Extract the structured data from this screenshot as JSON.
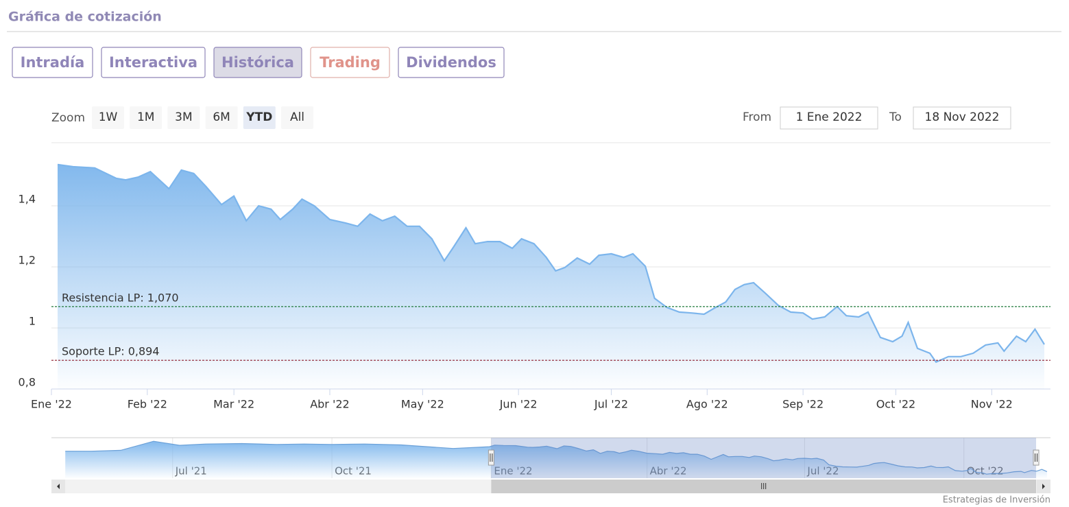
{
  "header": {
    "title": "Gráfica de cotización"
  },
  "tabs": [
    "Intradía",
    "Interactiva",
    "Histórica",
    "Trading",
    "Dividendos"
  ],
  "zoom": {
    "label": "Zoom",
    "buttons": [
      "1W",
      "1M",
      "3M",
      "6M",
      "YTD",
      "All"
    ]
  },
  "range": {
    "from_label": "From",
    "from": "1 Ene 2022",
    "to_label": "To",
    "to": "18 Nov 2022"
  },
  "chart_data": {
    "type": "area",
    "color": "#7cb5ec",
    "x": [
      "2022-01-03",
      "2022-01-08",
      "2022-01-15",
      "2022-01-22",
      "2022-01-25",
      "2022-01-29",
      "2022-02-02",
      "2022-02-08",
      "2022-02-12",
      "2022-02-16",
      "2022-02-20",
      "2022-02-25",
      "2022-03-01",
      "2022-03-05",
      "2022-03-09",
      "2022-03-13",
      "2022-03-16",
      "2022-03-20",
      "2022-03-23",
      "2022-03-27",
      "2022-04-01",
      "2022-04-06",
      "2022-04-10",
      "2022-04-14",
      "2022-04-18",
      "2022-04-22",
      "2022-04-26",
      "2022-04-30",
      "2022-05-04",
      "2022-05-08",
      "2022-05-11",
      "2022-05-15",
      "2022-05-18",
      "2022-05-22",
      "2022-05-26",
      "2022-05-30",
      "2022-06-02",
      "2022-06-06",
      "2022-06-10",
      "2022-06-13",
      "2022-06-16",
      "2022-06-20",
      "2022-06-24",
      "2022-06-27",
      "2022-07-01",
      "2022-07-05",
      "2022-07-08",
      "2022-07-12",
      "2022-07-15",
      "2022-07-19",
      "2022-07-23",
      "2022-07-27",
      "2022-07-31",
      "2022-08-03",
      "2022-08-07",
      "2022-08-10",
      "2022-08-13",
      "2022-08-16",
      "2022-08-20",
      "2022-08-24",
      "2022-08-28",
      "2022-09-01",
      "2022-09-04",
      "2022-09-08",
      "2022-09-12",
      "2022-09-15",
      "2022-09-19",
      "2022-09-22",
      "2022-09-26",
      "2022-09-30",
      "2022-10-03",
      "2022-10-05",
      "2022-10-08",
      "2022-10-12",
      "2022-10-14",
      "2022-10-18",
      "2022-10-22",
      "2022-10-26",
      "2022-10-30",
      "2022-11-03",
      "2022-11-05",
      "2022-11-09",
      "2022-11-12",
      "2022-11-15",
      "2022-11-18"
    ],
    "values": [
      1.535,
      1.528,
      1.524,
      1.49,
      1.485,
      1.494,
      1.512,
      1.456,
      1.517,
      1.506,
      1.463,
      1.404,
      1.432,
      1.351,
      1.4,
      1.389,
      1.355,
      1.389,
      1.422,
      1.4,
      1.355,
      1.344,
      1.333,
      1.373,
      1.351,
      1.366,
      1.333,
      1.333,
      1.292,
      1.22,
      1.265,
      1.328,
      1.276,
      1.283,
      1.283,
      1.261,
      1.292,
      1.276,
      1.231,
      1.187,
      1.198,
      1.229,
      1.209,
      1.238,
      1.243,
      1.231,
      1.243,
      1.202,
      1.097,
      1.067,
      1.052,
      1.049,
      1.045,
      1.063,
      1.085,
      1.126,
      1.142,
      1.148,
      1.112,
      1.074,
      1.052,
      1.049,
      1.029,
      1.036,
      1.07,
      1.04,
      1.036,
      1.052,
      0.969,
      0.955,
      0.973,
      1.018,
      0.933,
      0.917,
      0.888,
      0.906,
      0.906,
      0.917,
      0.944,
      0.951,
      0.924,
      0.973,
      0.955,
      0.996,
      0.946
    ],
    "xlim": [
      "2022-01-01",
      "2022-11-20"
    ],
    "xticks": [
      {
        "value": "2022-01-01",
        "label": "Ene '22"
      },
      {
        "value": "2022-02-01",
        "label": "Feb '22"
      },
      {
        "value": "2022-03-01",
        "label": "Mar '22"
      },
      {
        "value": "2022-04-01",
        "label": "Abr '22"
      },
      {
        "value": "2022-05-01",
        "label": "May '22"
      },
      {
        "value": "2022-06-01",
        "label": "Jun '22"
      },
      {
        "value": "2022-07-01",
        "label": "Jul '22"
      },
      {
        "value": "2022-08-01",
        "label": "Ago '22"
      },
      {
        "value": "2022-09-01",
        "label": "Sep '22"
      },
      {
        "value": "2022-10-01",
        "label": "Oct '22"
      },
      {
        "value": "2022-11-01",
        "label": "Nov '22"
      }
    ],
    "ylim": [
      0.8,
      1.6
    ],
    "yticks": [
      {
        "value": 0.8,
        "label": "0,8"
      },
      1,
      {
        "value": 1.2,
        "label": "1,2"
      },
      {
        "value": 1.4,
        "label": "1,4"
      }
    ],
    "grid": true,
    "annotations": [
      {
        "label": "Resistencia LP: 1,070",
        "value": 1.07,
        "color": "#1f7a3a"
      },
      {
        "label": "Soporte LP: 0,894",
        "value": 0.894,
        "color": "#8b1a2b"
      }
    ],
    "navigator": {
      "x": [
        "2021-04-30",
        "2021-05-15",
        "2021-06-01",
        "2021-06-20",
        "2021-07-05",
        "2021-07-20",
        "2021-08-10",
        "2021-08-30",
        "2021-09-15",
        "2021-10-01",
        "2021-10-20",
        "2021-11-10",
        "2021-11-25",
        "2021-12-10",
        "2021-12-31"
      ],
      "values": [
        1.4,
        1.4,
        1.42,
        1.62,
        1.53,
        1.56,
        1.57,
        1.55,
        1.56,
        1.55,
        1.56,
        1.54,
        1.5,
        1.46,
        1.5
      ],
      "xlim": [
        "2021-04-22",
        "2022-11-20"
      ],
      "ylim": [
        0.8,
        1.7
      ],
      "xticks": [
        {
          "value": "2021-07-01",
          "label": "Jul '21"
        },
        {
          "value": "2021-10-01",
          "label": "Oct '21"
        },
        {
          "value": "2022-01-01",
          "label": "Ene '22"
        },
        {
          "value": "2022-04-01",
          "label": "Abr '22"
        },
        {
          "value": "2022-07-01",
          "label": "Jul '22"
        },
        {
          "value": "2022-10-01",
          "label": "Oct '22"
        }
      ]
    }
  },
  "credit": "Estrategias de Inversión"
}
